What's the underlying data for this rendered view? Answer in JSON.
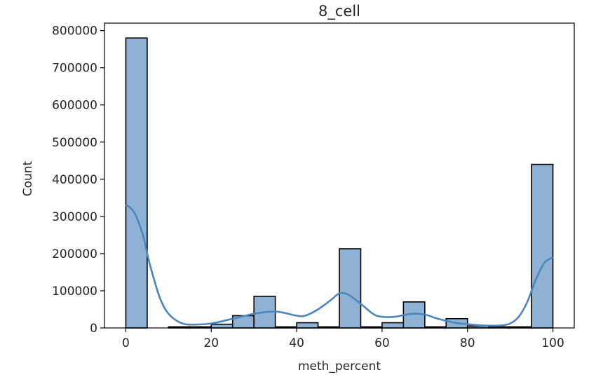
{
  "chart_data": {
    "type": "bar",
    "title": "8_cell",
    "xlabel": "meth_percent",
    "ylabel": "Count",
    "xlim": [
      -5,
      105
    ],
    "ylim": [
      0,
      820000
    ],
    "xticks": [
      0,
      20,
      40,
      60,
      80,
      100
    ],
    "yticks": [
      0,
      100000,
      200000,
      300000,
      400000,
      500000,
      600000,
      700000,
      800000
    ],
    "grid": false,
    "legend": "none",
    "bin_width": 5,
    "bins": [
      {
        "x0": 0,
        "x1": 5,
        "count": 780000
      },
      {
        "x0": 5,
        "x1": 10,
        "count": 0
      },
      {
        "x0": 10,
        "x1": 15,
        "count": 3000
      },
      {
        "x0": 15,
        "x1": 20,
        "count": 3000
      },
      {
        "x0": 20,
        "x1": 25,
        "count": 10000
      },
      {
        "x0": 25,
        "x1": 30,
        "count": 33000
      },
      {
        "x0": 30,
        "x1": 35,
        "count": 85000
      },
      {
        "x0": 35,
        "x1": 40,
        "count": 3000
      },
      {
        "x0": 40,
        "x1": 45,
        "count": 14000
      },
      {
        "x0": 45,
        "x1": 50,
        "count": 3000
      },
      {
        "x0": 50,
        "x1": 55,
        "count": 213000
      },
      {
        "x0": 55,
        "x1": 60,
        "count": 3000
      },
      {
        "x0": 60,
        "x1": 65,
        "count": 14000
      },
      {
        "x0": 65,
        "x1": 70,
        "count": 70000
      },
      {
        "x0": 70,
        "x1": 75,
        "count": 3000
      },
      {
        "x0": 75,
        "x1": 80,
        "count": 25000
      },
      {
        "x0": 80,
        "x1": 85,
        "count": 5000
      },
      {
        "x0": 85,
        "x1": 90,
        "count": 3000
      },
      {
        "x0": 90,
        "x1": 95,
        "count": 3000
      },
      {
        "x0": 95,
        "x1": 100,
        "count": 440000
      }
    ],
    "kde": {
      "x": [
        0,
        2,
        4,
        5,
        6,
        8,
        10,
        13,
        16,
        20,
        24,
        28,
        30,
        33,
        36,
        40,
        42,
        45,
        48,
        50,
        52,
        55,
        58,
        60,
        63,
        67,
        70,
        73,
        77,
        80,
        83,
        86,
        88,
        90,
        92,
        94,
        96,
        98,
        100
      ],
      "y": [
        332000,
        310000,
        250000,
        200000,
        155000,
        80000,
        38000,
        13000,
        9000,
        12000,
        22000,
        33000,
        38000,
        43000,
        43000,
        33000,
        33000,
        50000,
        75000,
        93000,
        90000,
        65000,
        37000,
        30000,
        30000,
        38000,
        36000,
        25000,
        14000,
        10000,
        7000,
        6000,
        7000,
        12000,
        30000,
        70000,
        130000,
        175000,
        190000
      ]
    }
  }
}
